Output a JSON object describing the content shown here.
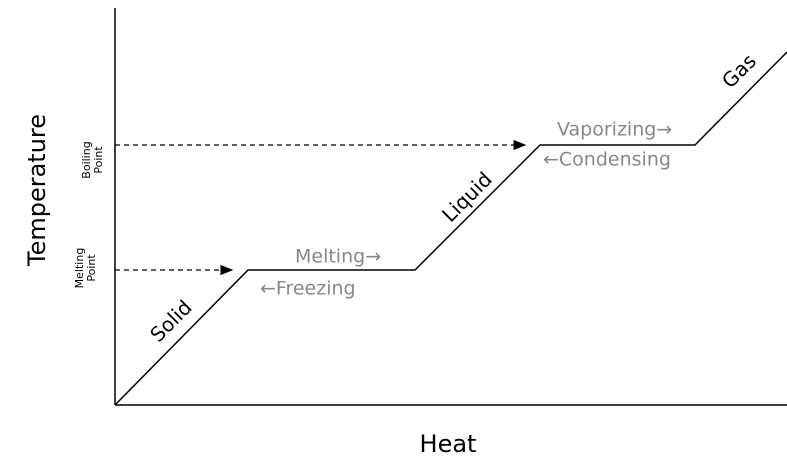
{
  "axes": {
    "x_label": "Heat",
    "y_label": "Temperature"
  },
  "levels": {
    "boiling": [
      "Boiling",
      "Point"
    ],
    "melting": [
      "Melting",
      "Point"
    ]
  },
  "phases": [
    "Solid",
    "Liquid",
    "Gas"
  ],
  "transitions": {
    "melting": "Melting→",
    "freezing": "←Freezing",
    "vaporizing": "Vaporizing→",
    "condensing": "←Condensing"
  }
}
